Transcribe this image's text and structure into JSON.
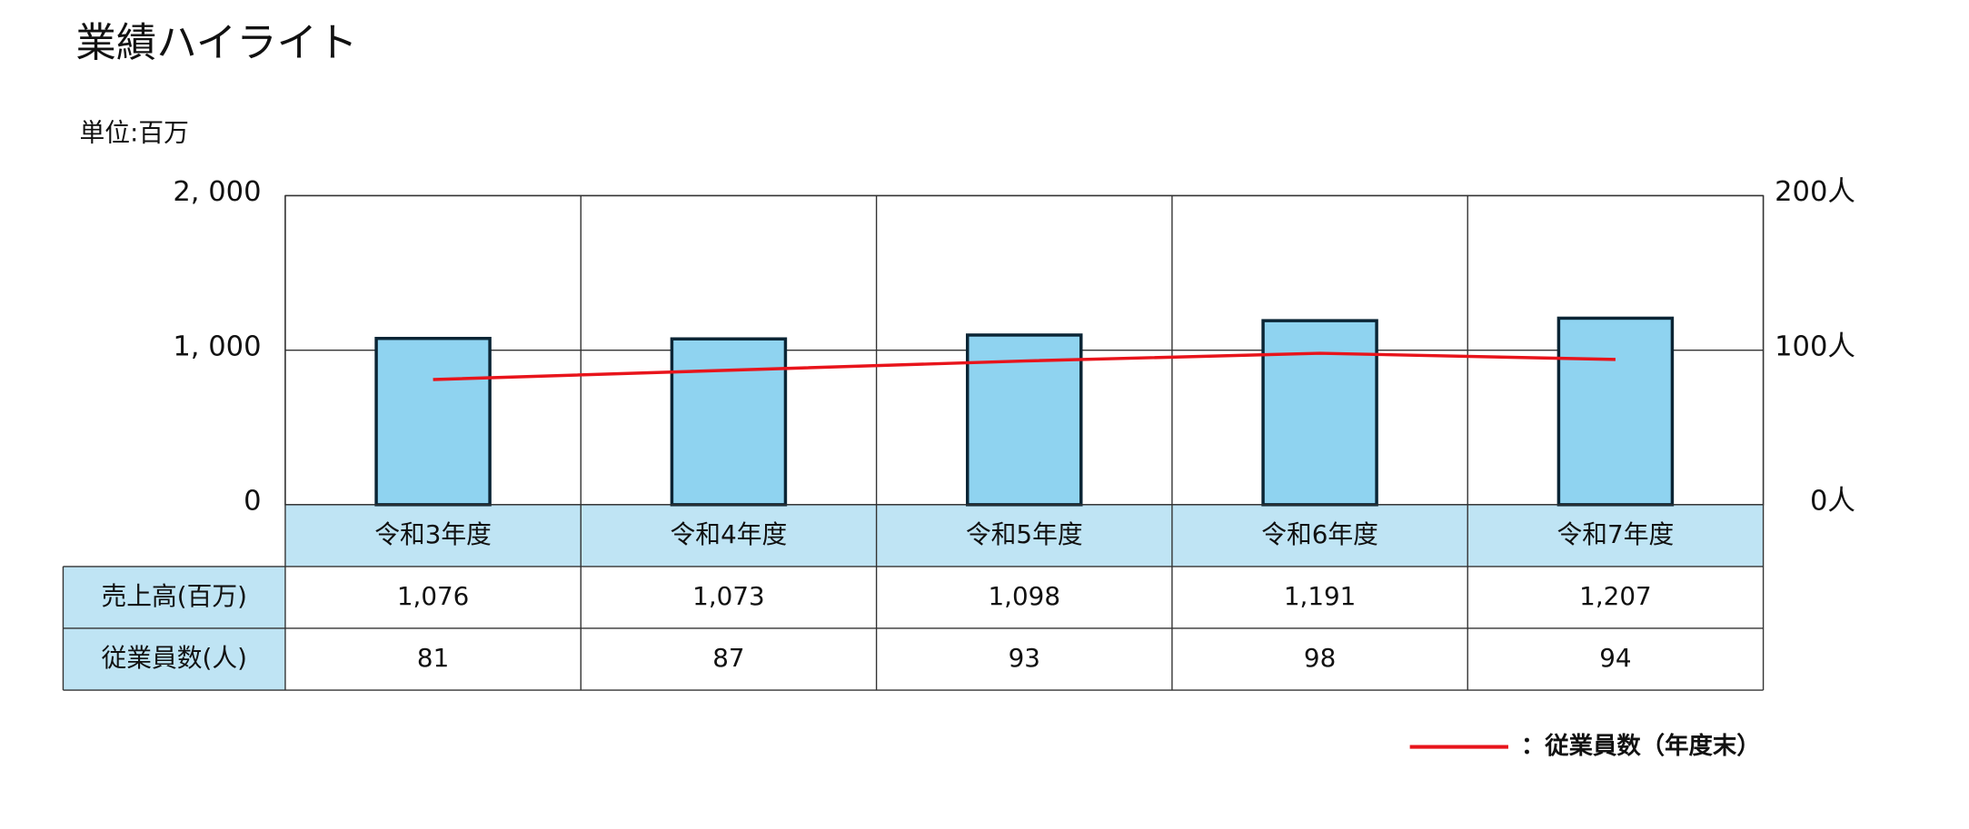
{
  "chart_data": {
    "type": "bar",
    "title": "業績ハイライト",
    "subtitle": "単位:百万",
    "categories": [
      "令和3年度",
      "令和4年度",
      "令和5年度",
      "令和6年度",
      "令和7年度"
    ],
    "series": [
      {
        "name": "売上高(百万)",
        "color": "#8fd3f0",
        "values": [
          1076,
          1073,
          1098,
          1191,
          1207
        ],
        "value_labels": [
          "1,076",
          "1,073",
          "1,098",
          "1,191",
          "1,207"
        ]
      },
      {
        "name": "従業員数(人)",
        "type": "line",
        "axis": "y2",
        "color": "#e8141b",
        "values": [
          81,
          87,
          93,
          98,
          94
        ]
      }
    ],
    "legend_label": "：従業員数（年度末）",
    "ylim": [
      0,
      2000
    ],
    "yticks": [
      {
        "value": 0,
        "label": "0"
      },
      {
        "value": 1000,
        "label": "1, 000"
      },
      {
        "value": 2000,
        "label": "2, 000"
      }
    ],
    "y2lim": [
      0,
      200
    ],
    "y2ticks": [
      {
        "value": 0,
        "label": "0人"
      },
      {
        "value": 100,
        "label": "100人"
      },
      {
        "value": 200,
        "label": "200人"
      }
    ],
    "grid": true,
    "table_header_color": "#bfe4f4"
  }
}
